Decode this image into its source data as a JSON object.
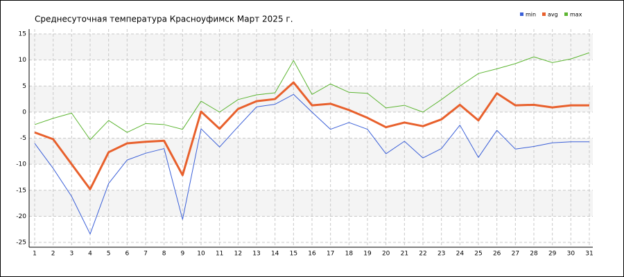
{
  "chart_data": {
    "type": "line",
    "title": "Среднесуточная температура Красноуфимск  Март 2025 г.",
    "categories": [
      "1",
      "2",
      "3",
      "4",
      "5",
      "6",
      "7",
      "8",
      "9",
      "10",
      "11",
      "12",
      "13",
      "14",
      "15",
      "16",
      "17",
      "18",
      "19",
      "20",
      "21",
      "22",
      "23",
      "24",
      "25",
      "26",
      "27",
      "28",
      "29",
      "30",
      "31"
    ],
    "series": [
      {
        "name": "min",
        "color": "#3a5fd8",
        "values": [
          -6.0,
          -10.8,
          -16.2,
          -23.4,
          -13.7,
          -9.2,
          -7.9,
          -7.0,
          -20.6,
          -3.2,
          -6.7,
          -2.8,
          1.0,
          1.5,
          3.4,
          0.0,
          -3.3,
          -2.0,
          -3.3,
          -8.0,
          -5.6,
          -8.8,
          -7.0,
          -2.5,
          -8.7,
          -3.5,
          -7.1,
          -6.6,
          -5.9,
          -5.7,
          -5.7
        ]
      },
      {
        "name": "avg",
        "color": "#e8602c",
        "values": [
          -3.9,
          -5.2,
          -10.0,
          -14.8,
          -7.7,
          -6.0,
          -5.7,
          -5.5,
          -12.1,
          0.1,
          -3.2,
          0.6,
          2.1,
          2.5,
          5.7,
          1.3,
          1.6,
          0.4,
          -1.1,
          -2.9,
          -2.0,
          -2.7,
          -1.4,
          1.4,
          -1.6,
          3.6,
          1.3,
          1.4,
          0.9,
          1.3,
          1.3
        ]
      },
      {
        "name": "max",
        "color": "#5cb531",
        "values": [
          -2.4,
          -1.2,
          -0.2,
          -5.3,
          -1.6,
          -3.9,
          -2.2,
          -2.4,
          -3.3,
          2.1,
          0.0,
          2.4,
          3.3,
          3.7,
          9.9,
          3.4,
          5.4,
          3.8,
          3.6,
          0.8,
          1.3,
          0.0,
          2.4,
          5.0,
          7.4,
          8.3,
          9.3,
          10.6,
          9.5,
          10.2,
          11.4
        ]
      }
    ],
    "ylim": [
      -25,
      15
    ],
    "yticks": [
      -25,
      -20,
      -15,
      -10,
      -5,
      0,
      5,
      10,
      15
    ],
    "grid": true
  }
}
